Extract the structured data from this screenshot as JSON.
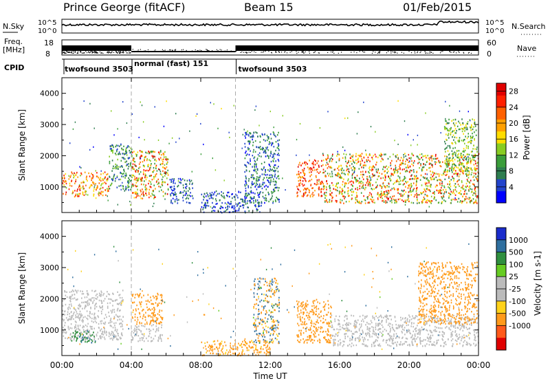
{
  "header": {
    "station": "Prince George (fitACF)",
    "beam": "Beam 15",
    "date": "01/Feb/2015"
  },
  "side_labels": {
    "nsky": "N.Sky",
    "freq_top": "Freq.",
    "freq_unit": "[MHz]",
    "cpid": "CPID",
    "nsearch": "N.Search",
    "nave": "Nave"
  },
  "strip_scales": {
    "nsky_top": "10^5",
    "nsky_bottom": "10^0",
    "nsearch_top": "10^5",
    "nsearch_bottom": "10^0",
    "freq_top": "18",
    "freq_bottom": "8",
    "nave_top": "60",
    "nave_bottom": "0"
  },
  "colors": {
    "power_scale": [
      "#0000ff",
      "#2244cc",
      "#2e7d4f",
      "#3a9d3a",
      "#88cc22",
      "#ffdd00",
      "#ffa000",
      "#ff6000",
      "#ff2000",
      "#e00000"
    ],
    "velocity_scale": [
      "#1a2ccc",
      "#2f6f9f",
      "#2f8f3f",
      "#66cc22",
      "#bbbbbb",
      "#bbbbbb",
      "#ffd21a",
      "#ff9a1a",
      "#ff5a1a",
      "#e00000"
    ],
    "line": "#000000",
    "dash": "#aaaaaa"
  },
  "chart_data": [
    {
      "type": "line",
      "name": "status-strips",
      "x_range_hours": [
        0,
        24
      ],
      "cpid_segments": [
        {
          "label": "twofsound 3503",
          "start": 0.0,
          "end": 4.0
        },
        {
          "label": "normal (fast) 151",
          "start": 4.0,
          "end": 10.0
        },
        {
          "label": "twofsound 3503",
          "start": 10.0,
          "end": 24.0
        }
      ],
      "transitions_hours": [
        4.0,
        10.0
      ]
    },
    {
      "type": "heatmap",
      "name": "power",
      "ylabel": "Slant Range [km]",
      "xlabel": "",
      "ylim": [
        180,
        4500
      ],
      "yticks": [
        "1000",
        "2000",
        "3000",
        "4000"
      ],
      "colorbar_label": "Power [dB]",
      "colorbar_ticks": [
        "4",
        "8",
        "12",
        "16",
        "20",
        "24",
        "28"
      ],
      "colorbar_range": [
        0,
        30
      ],
      "regions": [
        {
          "t0": 0.0,
          "t1": 2.7,
          "r0": 700,
          "r1": 1500,
          "v0": 14,
          "v1": 28
        },
        {
          "t0": 2.7,
          "t1": 4.0,
          "r0": 900,
          "r1": 2400,
          "v0": 4,
          "v1": 14
        },
        {
          "t0": 4.0,
          "t1": 6.1,
          "r0": 650,
          "r1": 2200,
          "v0": 8,
          "v1": 28
        },
        {
          "t0": 6.2,
          "t1": 7.6,
          "r0": 500,
          "r1": 1300,
          "v0": 2,
          "v1": 9
        },
        {
          "t0": 8.0,
          "t1": 11.5,
          "r0": 200,
          "r1": 900,
          "v0": 2,
          "v1": 8
        },
        {
          "t0": 10.5,
          "t1": 12.5,
          "r0": 500,
          "r1": 2800,
          "v0": 2,
          "v1": 12
        },
        {
          "t0": 13.5,
          "t1": 15.0,
          "r0": 700,
          "r1": 1900,
          "v0": 18,
          "v1": 29
        },
        {
          "t0": 15.0,
          "t1": 24.0,
          "r0": 500,
          "r1": 2100,
          "v0": 6,
          "v1": 28
        },
        {
          "t0": 22.0,
          "t1": 23.9,
          "r0": 1500,
          "r1": 3200,
          "v0": 6,
          "v1": 18
        }
      ]
    },
    {
      "type": "heatmap",
      "name": "velocity",
      "ylabel": "Slant Range [km]",
      "xlabel": "Time UT",
      "ylim": [
        180,
        4500
      ],
      "yticks": [
        "1000",
        "2000",
        "3000",
        "4000"
      ],
      "xticks": [
        "00:00",
        "04:00",
        "08:00",
        "12:00",
        "16:00",
        "20:00",
        "00:00"
      ],
      "colorbar_label": "Velocity [m s-1]",
      "colorbar_ticks": [
        "1000",
        "500",
        "100",
        "25",
        "-25",
        "-100",
        "-500",
        "-1000"
      ],
      "regions": [
        {
          "t0": 0.0,
          "t1": 3.5,
          "r0": 700,
          "r1": 2300,
          "v0": -25,
          "v1": 25
        },
        {
          "t0": 0.5,
          "t1": 2.0,
          "r0": 600,
          "r1": 1000,
          "v0": 50,
          "v1": 120
        },
        {
          "t0": 4.0,
          "t1": 5.8,
          "r0": 1200,
          "r1": 2200,
          "v0": -500,
          "v1": -100
        },
        {
          "t0": 4.0,
          "t1": 5.8,
          "r0": 650,
          "r1": 1200,
          "v0": -25,
          "v1": 25
        },
        {
          "t0": 8.0,
          "t1": 12.0,
          "r0": 200,
          "r1": 700,
          "v0": -300,
          "v1": -60
        },
        {
          "t0": 11.0,
          "t1": 12.5,
          "r0": 600,
          "r1": 2700,
          "v0": -400,
          "v1": 400
        },
        {
          "t0": 13.5,
          "t1": 15.5,
          "r0": 600,
          "r1": 2000,
          "v0": -500,
          "v1": -100
        },
        {
          "t0": 15.5,
          "t1": 24.0,
          "r0": 500,
          "r1": 1500,
          "v0": -25,
          "v1": 25
        },
        {
          "t0": 20.5,
          "t1": 23.9,
          "r0": 1200,
          "r1": 3200,
          "v0": -500,
          "v1": -100
        }
      ]
    }
  ]
}
